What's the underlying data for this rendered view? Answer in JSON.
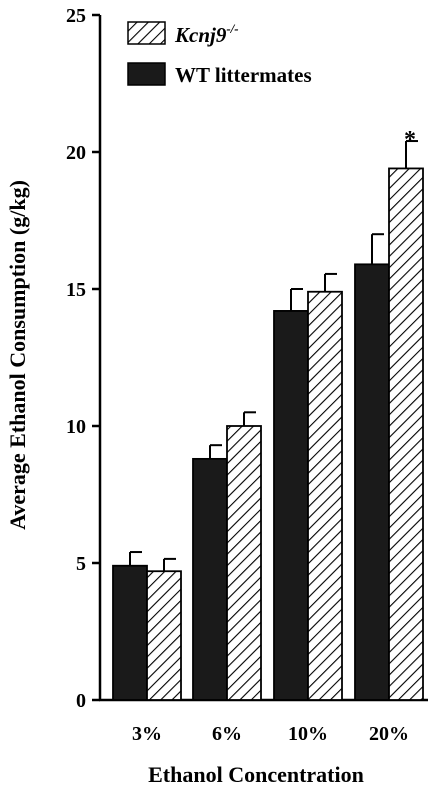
{
  "chart_data": {
    "type": "bar",
    "categories": [
      "3%",
      "6%",
      "10%",
      "20%"
    ],
    "series": [
      {
        "name": "WT littermates",
        "values": [
          4.9,
          8.8,
          14.2,
          15.9
        ],
        "errors": [
          0.5,
          0.5,
          0.8,
          1.1
        ],
        "fill": "#1a1a1a"
      },
      {
        "name": "Kcnj9",
        "name_sup": "-/-",
        "values": [
          4.7,
          10.0,
          14.9,
          19.4
        ],
        "errors": [
          0.45,
          0.5,
          0.65,
          1.0
        ],
        "fill": "hatched"
      }
    ],
    "xlabel": "Ethanol Concentration",
    "ylabel": "Average Ethanol Consumption (g/kg)",
    "ylim": [
      0,
      25
    ],
    "yticks": [
      "0",
      "5",
      "10",
      "15",
      "20",
      "25"
    ],
    "annotations": [
      {
        "category": "20%",
        "series": "Kcnj9",
        "text": "*"
      }
    ],
    "legend_position": "top-left",
    "grid": false
  }
}
